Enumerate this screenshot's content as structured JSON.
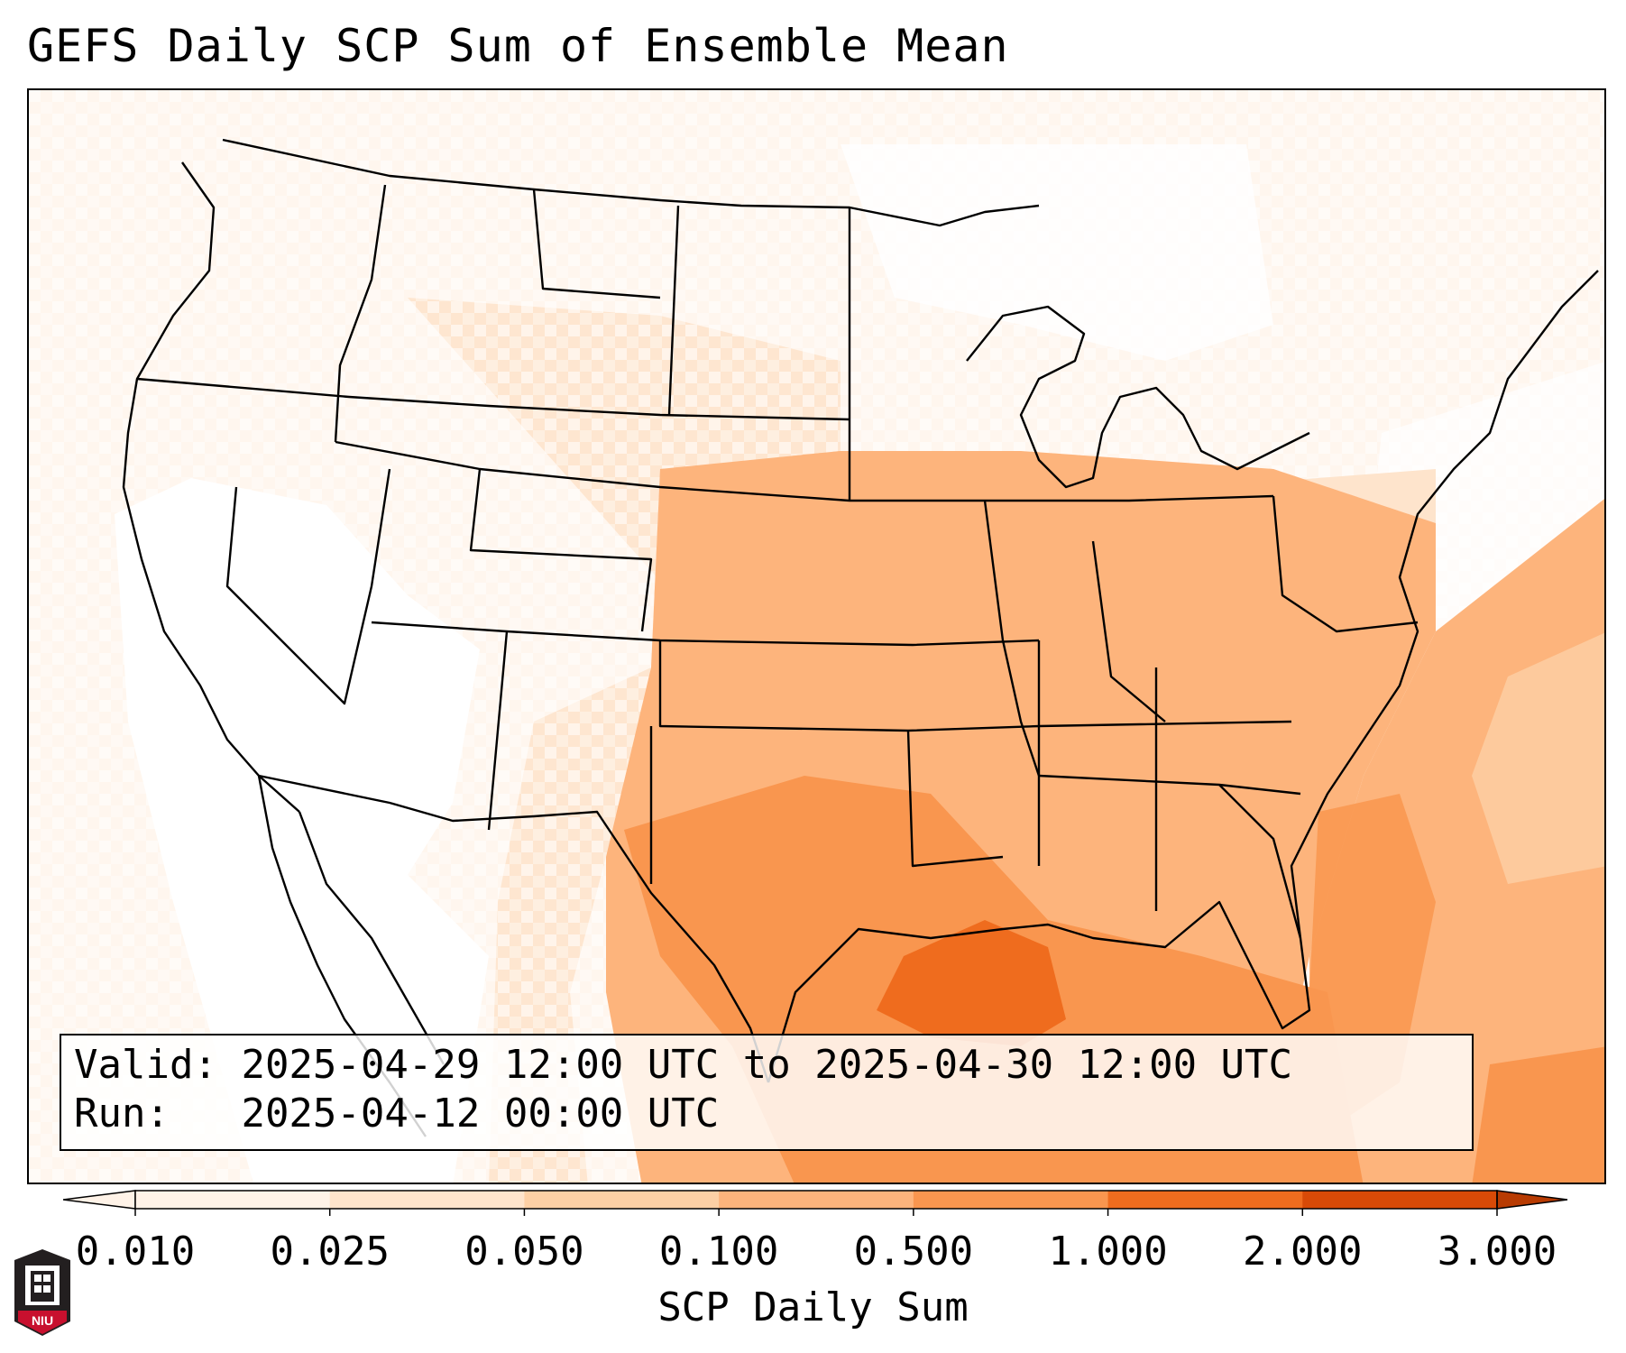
{
  "title": "GEFS Daily SCP Sum of Ensemble Mean",
  "info": {
    "valid_label": "Valid:",
    "valid_value": "2025-04-29 12:00 UTC to 2025-04-30 12:00 UTC",
    "run_label": "Run:",
    "run_value": "2025-04-12 00:00 UTC"
  },
  "colorbar": {
    "label": "SCP Daily Sum",
    "ticks": [
      "0.010",
      "0.025",
      "0.050",
      "0.100",
      "0.500",
      "1.000",
      "2.000",
      "3.000"
    ],
    "colors": [
      "#fff3e8",
      "#fee4cc",
      "#fdd0a5",
      "#fdb47c",
      "#f9964f",
      "#ef6c1e",
      "#d84a07",
      "#b83b02"
    ],
    "extend": "both"
  },
  "logo": {
    "text": "NIU"
  }
}
